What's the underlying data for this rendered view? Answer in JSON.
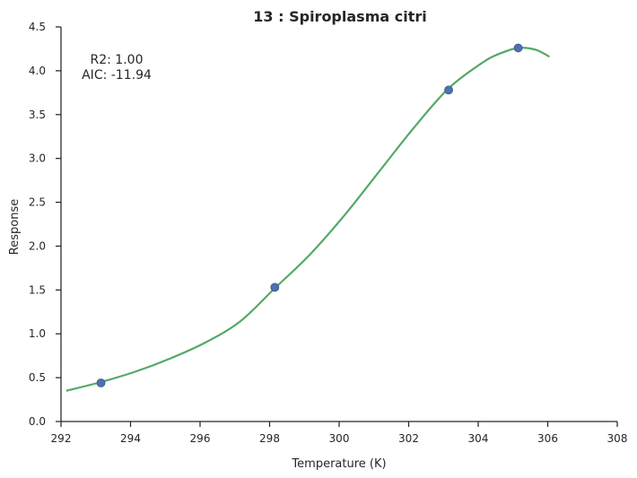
{
  "chart_data": {
    "type": "scatter",
    "title": "13 : Spiroplasma citri",
    "xlabel": "Temperature (K)",
    "ylabel": "Response",
    "xlim": [
      292,
      308
    ],
    "ylim": [
      0.0,
      4.5
    ],
    "xticks": [
      "292",
      "294",
      "296",
      "298",
      "300",
      "302",
      "304",
      "306",
      "308"
    ],
    "yticks": [
      "0.0",
      "0.5",
      "1.0",
      "1.5",
      "2.0",
      "2.5",
      "3.0",
      "3.5",
      "4.0",
      "4.5"
    ],
    "grid": false,
    "annotations": [
      "R2: 1.00",
      "AIC: -11.94"
    ],
    "series": [
      {
        "kind": "points",
        "color": "#4c72b0",
        "x": [
          293.15,
          298.15,
          303.15,
          305.15
        ],
        "y": [
          0.44,
          1.53,
          3.78,
          4.26
        ]
      },
      {
        "kind": "fitted-line",
        "color": "#55a868",
        "x": [
          292.15,
          293.15,
          294.15,
          295.15,
          296.15,
          297.15,
          298.15,
          299.15,
          300.15,
          301.15,
          302.15,
          303.15,
          304.15,
          304.65,
          305.15,
          305.65,
          306.05
        ],
        "y": [
          0.35,
          0.45,
          0.57,
          0.72,
          0.9,
          1.14,
          1.52,
          1.9,
          2.35,
          2.85,
          3.35,
          3.8,
          4.1,
          4.2,
          4.26,
          4.24,
          4.16
        ]
      }
    ]
  }
}
